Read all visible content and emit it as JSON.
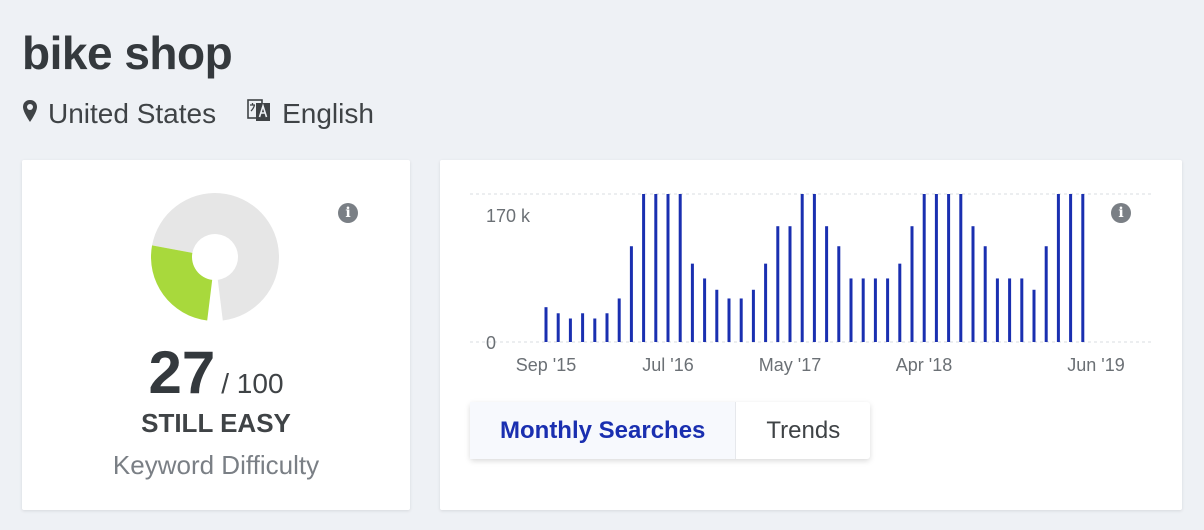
{
  "keyword": "bike shop",
  "location": {
    "label": "United States",
    "icon": "map-pin-icon"
  },
  "language": {
    "label": "English",
    "icon": "translate-icon"
  },
  "difficulty": {
    "score": "27",
    "max": "/ 100",
    "level": "STILL EASY",
    "label": "Keyword Difficulty",
    "fraction": 0.27,
    "colors": {
      "fill": "#a8d93c",
      "track": "#e6e6e6"
    }
  },
  "tabs": [
    {
      "label": "Monthly Searches",
      "active": true
    },
    {
      "label": "Trends",
      "active": false
    }
  ],
  "chart_data": {
    "type": "bar",
    "ylim": [
      0,
      170000
    ],
    "y_tick_labels": [
      "170 k",
      "0"
    ],
    "x_tick_labels": [
      "Sep '15",
      "Jul '16",
      "May '17",
      "Apr '18",
      "Jun '19"
    ],
    "bar_color": "#1a2fb0",
    "values": [
      40000,
      33000,
      27000,
      33000,
      27000,
      33000,
      50000,
      110000,
      170000,
      170000,
      170000,
      170000,
      90000,
      73000,
      60000,
      50000,
      50000,
      60000,
      90000,
      133000,
      133000,
      170000,
      170000,
      133000,
      110000,
      73000,
      73000,
      73000,
      73000,
      90000,
      133000,
      170000,
      170000,
      170000,
      170000,
      133000,
      110000,
      73000,
      73000,
      73000,
      60000,
      110000,
      170000,
      170000,
      170000
    ]
  }
}
